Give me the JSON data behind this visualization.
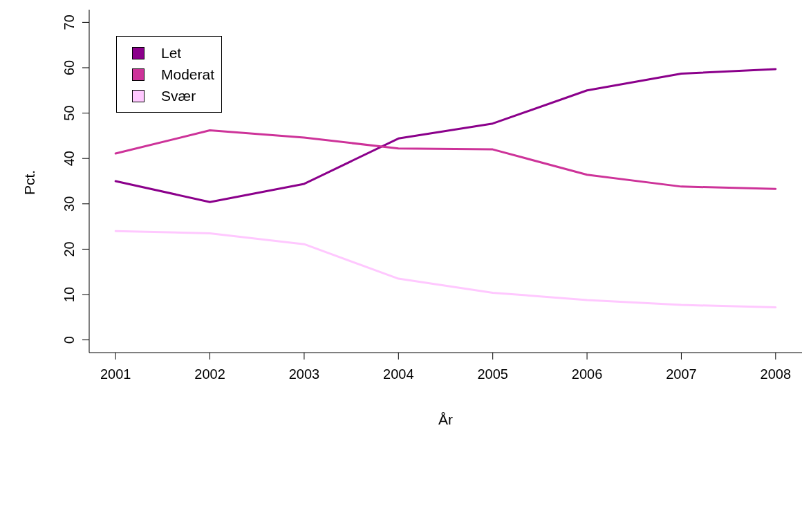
{
  "chart_data": {
    "type": "line",
    "xlabel": "År",
    "ylabel": "Pct.",
    "x": [
      2001,
      2002,
      2003,
      2004,
      2005,
      2006,
      2007,
      2008
    ],
    "series": [
      {
        "name": "Let",
        "color": "#8b008b",
        "values": [
          35.0,
          30.4,
          34.4,
          44.4,
          47.7,
          55.0,
          58.7,
          59.7
        ]
      },
      {
        "name": "Moderat",
        "color": "#cd3399",
        "values": [
          41.1,
          46.2,
          44.6,
          42.2,
          42.0,
          36.4,
          33.8,
          33.3
        ]
      },
      {
        "name": "Svær",
        "color": "#ffc8ff",
        "values": [
          24.0,
          23.5,
          21.1,
          13.5,
          10.4,
          8.8,
          7.7,
          7.2
        ]
      }
    ],
    "xlim": [
      2000.72,
      2008.28
    ],
    "xticks": [
      2001,
      2002,
      2003,
      2004,
      2005,
      2006,
      2007,
      2008
    ],
    "ylim": [
      -2.8,
      72.8
    ],
    "yticks": [
      0,
      10,
      20,
      30,
      40,
      50,
      60,
      70
    ],
    "legend": "top left",
    "grid": false,
    "marker": "none",
    "line_style": "solid"
  }
}
